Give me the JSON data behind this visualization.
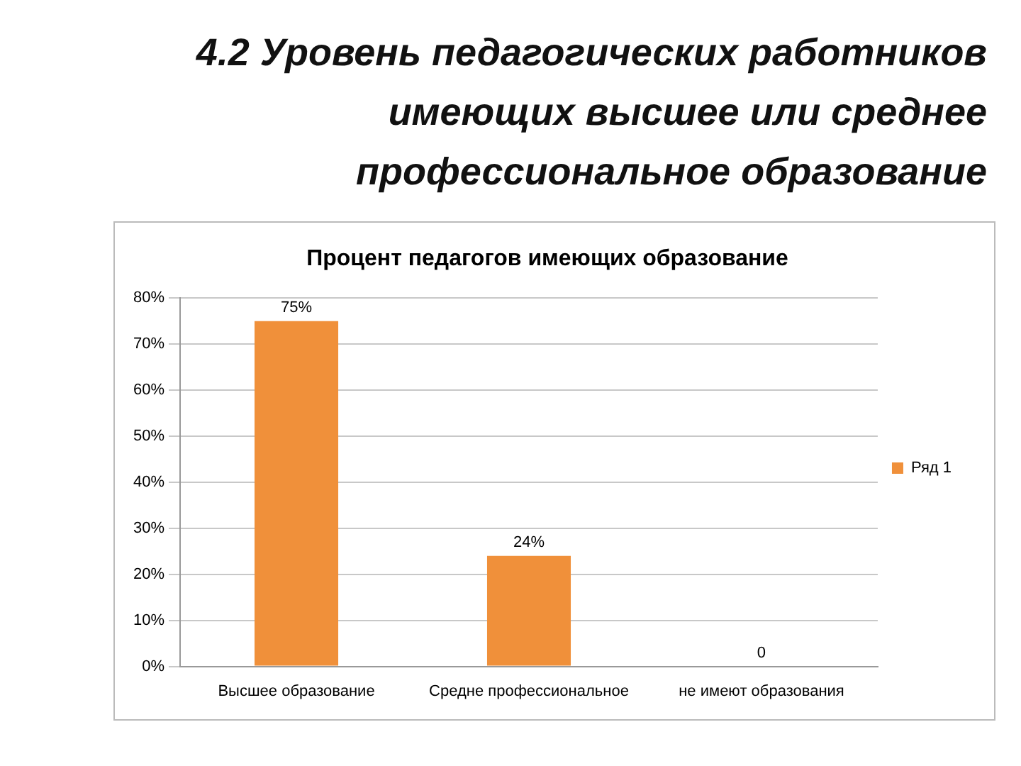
{
  "chart_data": {
    "type": "bar",
    "title": "4.2 Уровень педагогических работников имеющих высшее или среднее профессиональное образование",
    "subtitle": "Процент педагогов имеющих образование",
    "categories": [
      "Высшее образование",
      "Средне профессиональное",
      "не имеют образования"
    ],
    "series": [
      {
        "name": "Ряд 1",
        "color": "#f0903a",
        "values": [
          75,
          24,
          0
        ],
        "value_labels": [
          "75%",
          "24%",
          "0"
        ]
      }
    ],
    "ylim": [
      0,
      80
    ],
    "yticks": [
      {
        "value": 0,
        "label": "0%"
      },
      {
        "value": 10,
        "label": "10%"
      },
      {
        "value": 20,
        "label": "20%"
      },
      {
        "value": 30,
        "label": "30%"
      },
      {
        "value": 40,
        "label": "40%"
      },
      {
        "value": 50,
        "label": "50%"
      },
      {
        "value": 60,
        "label": "60%"
      },
      {
        "value": 70,
        "label": "70%"
      },
      {
        "value": 80,
        "label": "80%"
      }
    ],
    "grid": "y",
    "legend": "right"
  }
}
